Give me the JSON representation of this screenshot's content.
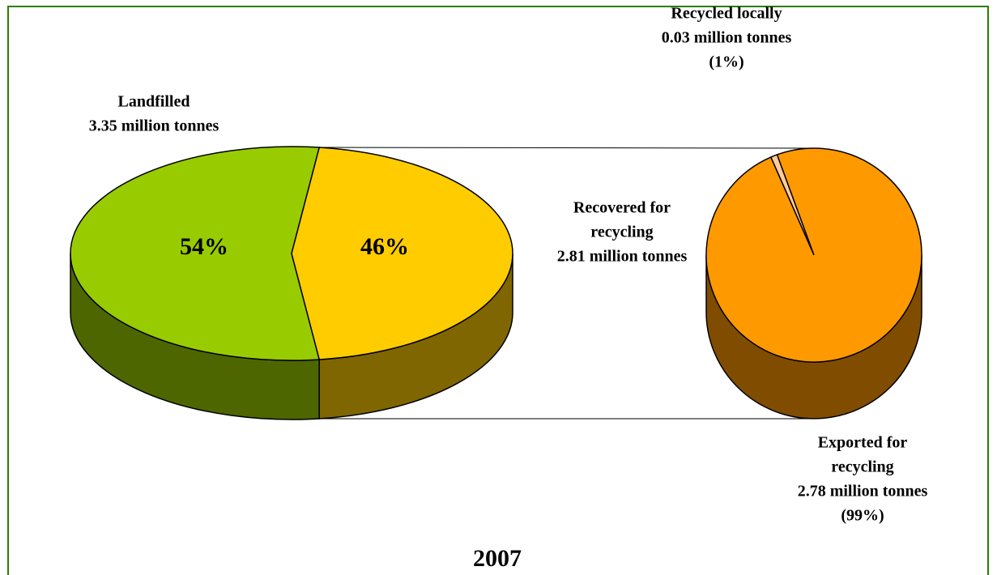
{
  "chart_data": {
    "type": "pie",
    "title": "2007",
    "categories": [
      [
        "Landfilled",
        "3.35 million tonnes"
      ],
      [
        "Recovered for",
        "recycling",
        "2.81 million tonnes"
      ]
    ],
    "values": [
      54,
      46
    ],
    "value_labels": [
      "54%",
      "46%"
    ],
    "colors": [
      "#99cc00",
      "#ffcc00"
    ],
    "side_colors": [
      "#4d6600",
      "#806600"
    ],
    "secondary": {
      "categories": [
        [
          "Recycled locally",
          "0.03 million tonnes"
        ],
        [
          "Exported for",
          "recycling",
          "2.78 million tonnes"
        ]
      ],
      "values": [
        1,
        99
      ],
      "value_labels": [
        "(1%)",
        "(99%)"
      ],
      "colors": [
        "#ffcc99",
        "#ff9900"
      ],
      "side_colors": [
        "#806650",
        "#804d00"
      ]
    }
  }
}
